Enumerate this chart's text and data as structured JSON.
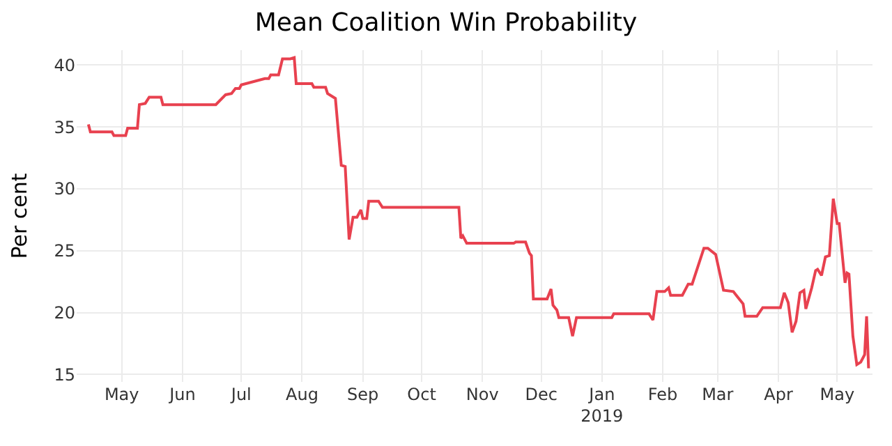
{
  "chart_data": {
    "type": "line",
    "title": "Mean Coalition Win Probability",
    "ylabel": "Per cent",
    "x": [
      "2018-04-14",
      "2018-04-15",
      "2018-04-26",
      "2018-04-27",
      "2018-05-03",
      "2018-05-04",
      "2018-05-09",
      "2018-05-10",
      "2018-05-13",
      "2018-05-15",
      "2018-05-21",
      "2018-05-22",
      "2018-06-18",
      "2018-06-23",
      "2018-06-26",
      "2018-06-28",
      "2018-06-30",
      "2018-07-01",
      "2018-07-13",
      "2018-07-15",
      "2018-07-16",
      "2018-07-20",
      "2018-07-22",
      "2018-07-26",
      "2018-07-28",
      "2018-07-29",
      "2018-08-06",
      "2018-08-07",
      "2018-08-13",
      "2018-08-14",
      "2018-08-18",
      "2018-08-21",
      "2018-08-23",
      "2018-08-25",
      "2018-08-27",
      "2018-08-29",
      "2018-08-31",
      "2018-09-01",
      "2018-09-03",
      "2018-09-04",
      "2018-09-09",
      "2018-09-11",
      "2018-10-20",
      "2018-10-21",
      "2018-10-22",
      "2018-10-24",
      "2018-11-17",
      "2018-11-18",
      "2018-11-23",
      "2018-11-25",
      "2018-11-26",
      "2018-11-27",
      "2018-12-04",
      "2018-12-06",
      "2018-12-07",
      "2018-12-09",
      "2018-12-10",
      "2018-12-15",
      "2018-12-17",
      "2018-12-19",
      "2019-01-06",
      "2019-01-07",
      "2019-01-25",
      "2019-01-27",
      "2019-01-29",
      "2019-02-02",
      "2019-02-04",
      "2019-02-05",
      "2019-02-11",
      "2019-02-14",
      "2019-02-16",
      "2019-02-22",
      "2019-02-24",
      "2019-02-28",
      "2019-03-04",
      "2019-03-09",
      "2019-03-11",
      "2019-03-14",
      "2019-03-15",
      "2019-03-21",
      "2019-03-24",
      "2019-04-02",
      "2019-04-04",
      "2019-04-06",
      "2019-04-08",
      "2019-04-10",
      "2019-04-12",
      "2019-04-14",
      "2019-04-15",
      "2019-04-18",
      "2019-04-20",
      "2019-04-21",
      "2019-04-23",
      "2019-04-25",
      "2019-04-27",
      "2019-04-29",
      "2019-05-01",
      "2019-05-02",
      "2019-05-05",
      "2019-05-06",
      "2019-05-07",
      "2019-05-09",
      "2019-05-11",
      "2019-05-13",
      "2019-05-15",
      "2019-05-16",
      "2019-05-17"
    ],
    "series": [
      {
        "color": "#e8414f",
        "values": [
          35.2,
          34.6,
          34.6,
          34.3,
          34.3,
          34.9,
          34.9,
          36.8,
          36.9,
          37.4,
          37.4,
          36.8,
          36.8,
          37.6,
          37.7,
          38.1,
          38.1,
          38.4,
          38.9,
          38.9,
          39.2,
          39.2,
          40.5,
          40.5,
          40.6,
          38.5,
          38.5,
          38.2,
          38.2,
          37.7,
          37.3,
          31.9,
          31.8,
          25.9,
          27.7,
          27.7,
          28.3,
          27.6,
          27.6,
          29.0,
          29.0,
          28.5,
          28.5,
          26.0,
          26.2,
          25.6,
          25.6,
          25.7,
          25.7,
          24.8,
          24.6,
          21.1,
          21.1,
          21.9,
          20.6,
          20.2,
          19.6,
          19.6,
          18.1,
          19.6,
          19.6,
          19.9,
          19.9,
          19.4,
          21.7,
          21.7,
          22.0,
          21.4,
          21.4,
          22.3,
          22.3,
          25.2,
          25.2,
          24.7,
          21.8,
          21.7,
          21.3,
          20.7,
          19.7,
          19.7,
          20.4,
          20.4,
          21.6,
          20.8,
          18.4,
          19.3,
          21.6,
          21.8,
          20.3,
          22.0,
          23.4,
          23.5,
          23.0,
          24.5,
          24.6,
          29.2,
          27.2,
          27.2,
          22.4,
          23.2,
          23.1,
          18.1,
          15.8,
          16.0,
          16.6,
          19.7,
          15.5
        ]
      }
    ],
    "xlim": [
      "2018-04-08",
      "2019-05-19"
    ],
    "xticks": [
      {
        "value": "2018-05-01",
        "label": "May"
      },
      {
        "value": "2018-06-01",
        "label": "Jun"
      },
      {
        "value": "2018-07-01",
        "label": "Jul"
      },
      {
        "value": "2018-08-01",
        "label": "Aug"
      },
      {
        "value": "2018-09-01",
        "label": "Sep"
      },
      {
        "value": "2018-10-01",
        "label": "Oct"
      },
      {
        "value": "2018-11-01",
        "label": "Nov"
      },
      {
        "value": "2018-12-01",
        "label": "Dec"
      },
      {
        "value": "2019-01-01",
        "label": "Jan\n2019"
      },
      {
        "value": "2019-02-01",
        "label": "Feb"
      },
      {
        "value": "2019-03-01",
        "label": "Mar"
      },
      {
        "value": "2019-04-01",
        "label": "Apr"
      },
      {
        "value": "2019-05-01",
        "label": "May"
      }
    ],
    "ylim": [
      14.4,
      41.2
    ],
    "yticks": [
      15,
      20,
      25,
      30,
      35,
      40
    ],
    "grid": true,
    "line_style": "solid",
    "marker": "none"
  }
}
